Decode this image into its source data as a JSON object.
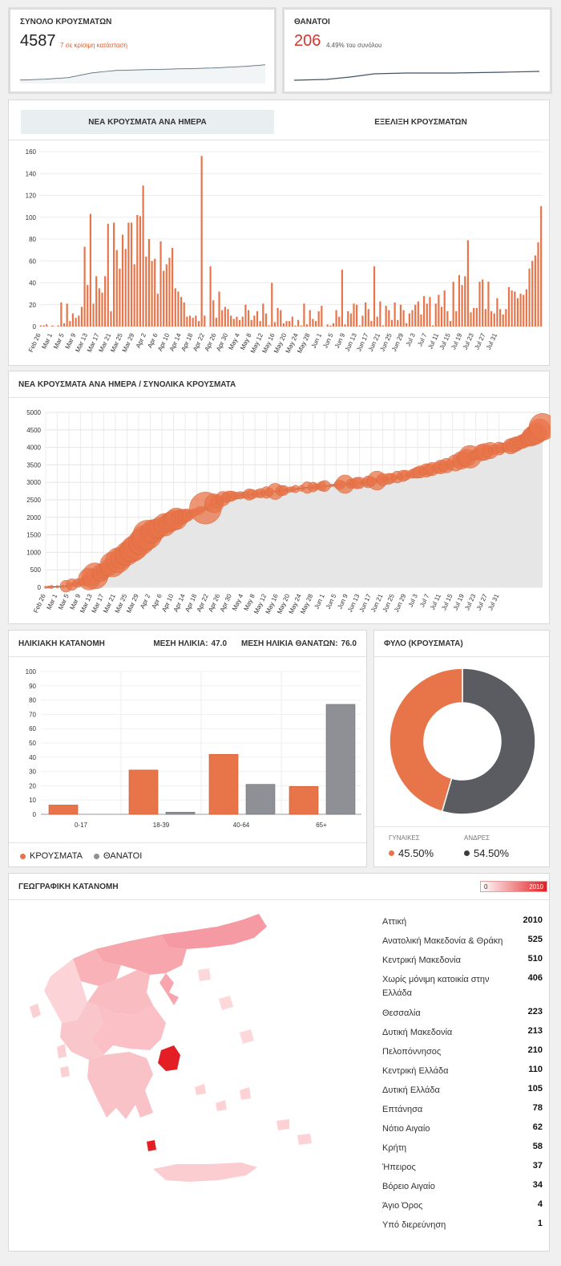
{
  "kpi_cases": {
    "title": "ΣΥΝΟΛΟ ΚΡΟΥΣΜΑΤΩΝ",
    "value": "4587",
    "note": "7 σε κρίσιμη κατάσταση"
  },
  "kpi_deaths": {
    "title": "ΘΑΝΑΤΟΙ",
    "value": "206",
    "note": "4.49% του συνόλου"
  },
  "tabs": {
    "daily": "ΝΕΑ ΚΡΟΥΣΜΑΤΑ ΑΝΑ ΗΜΕΡΑ",
    "evolution": "ΕΞΕΛΙΞΗ ΚΡΟΥΣΜΑΤΩΝ"
  },
  "colors": {
    "accent": "#e8744a",
    "grey": "#8e9096",
    "dark": "#5a5c61",
    "red": "#e31e24"
  },
  "date_labels": [
    "Feb 26",
    "Mar 1",
    "Mar 5",
    "Mar 9",
    "Mar 13",
    "Mar 17",
    "Mar 21",
    "Mar 25",
    "Mar 29",
    "Apr 2",
    "Apr 6",
    "Apr 10",
    "Apr 14",
    "Apr 18",
    "Apr 22",
    "Apr 26",
    "Apr 30",
    "May 4",
    "May 8",
    "May 12",
    "May 16",
    "May 20",
    "May 24",
    "May 28",
    "Jun 1",
    "Jun 5",
    "Jun 9",
    "Jun 13",
    "Jun 17",
    "Jun 21",
    "Jun 25",
    "Jun 29",
    "Jul 3",
    "Jul 7",
    "Jul 11",
    "Jul 15",
    "Jul 19",
    "Jul 23",
    "Jul 27",
    "Jul 31"
  ],
  "chart_data": [
    {
      "type": "bar",
      "title": "ΝΕΑ ΚΡΟΥΣΜΑΤΑ ΑΝΑ ΗΜΕΡΑ",
      "ylim": [
        0,
        160
      ],
      "yticks": [
        0,
        20,
        40,
        60,
        80,
        100,
        120,
        140,
        160
      ],
      "values": [
        1,
        1,
        2,
        0,
        1,
        0,
        1,
        22,
        3,
        21,
        5,
        12,
        8,
        10,
        18,
        73,
        38,
        103,
        21,
        46,
        35,
        31,
        46,
        94,
        14,
        95,
        70,
        53,
        84,
        71,
        95,
        95,
        57,
        102,
        101,
        129,
        64,
        80,
        60,
        62,
        30,
        78,
        51,
        57,
        63,
        72,
        35,
        32,
        27,
        22,
        9,
        10,
        8,
        10,
        5,
        156,
        10,
        0,
        55,
        24,
        8,
        32,
        15,
        18,
        16,
        10,
        7,
        9,
        6,
        9,
        20,
        15,
        6,
        10,
        14,
        5,
        21,
        12,
        1,
        40,
        4,
        17,
        15,
        3,
        5,
        5,
        9,
        1,
        6,
        1,
        21,
        2,
        15,
        7,
        5,
        14,
        19,
        0,
        2,
        1,
        3,
        15,
        9,
        52,
        2,
        14,
        12,
        21,
        20,
        1,
        10,
        22,
        16,
        5,
        55,
        9,
        23,
        1,
        19,
        15,
        6,
        22,
        6,
        20,
        15,
        3,
        12,
        15,
        20,
        23,
        11,
        28,
        21,
        27,
        1,
        21,
        29,
        18,
        33,
        14,
        5,
        41,
        14,
        47,
        38,
        46,
        79,
        13,
        17,
        17,
        41,
        43,
        16,
        41,
        14,
        12,
        26,
        16,
        11,
        16,
        36,
        33,
        32,
        26,
        30,
        29,
        34,
        53,
        60,
        65,
        77,
        110
      ]
    },
    {
      "type": "area",
      "title": "ΝΕΑ ΚΡΟΥΣΜΑΤΑ ΑΝΑ ΗΜΕΡΑ / ΣΥΝΟΛΙΚΑ ΚΡΟΥΣΜΑΤΑ",
      "ylim": [
        0,
        5000
      ],
      "yticks": [
        0,
        500,
        1000,
        1500,
        2000,
        2500,
        3000,
        3500,
        4000,
        4500,
        5000
      ],
      "cumulative_points": [
        [
          0,
          1
        ],
        [
          7,
          30
        ],
        [
          14,
          190
        ],
        [
          20,
          460
        ],
        [
          26,
          840
        ],
        [
          32,
          1210
        ],
        [
          35,
          1500
        ],
        [
          38,
          1660
        ],
        [
          42,
          1830
        ],
        [
          46,
          2000
        ],
        [
          50,
          2090
        ],
        [
          56,
          2300
        ],
        [
          60,
          2500
        ],
        [
          63,
          2600
        ],
        [
          70,
          2650
        ],
        [
          80,
          2750
        ],
        [
          90,
          2850
        ],
        [
          100,
          2925
        ],
        [
          110,
          3000
        ],
        [
          118,
          3100
        ],
        [
          125,
          3220
        ],
        [
          130,
          3320
        ],
        [
          135,
          3420
        ],
        [
          140,
          3520
        ],
        [
          145,
          3700
        ],
        [
          150,
          3850
        ],
        [
          155,
          3950
        ],
        [
          160,
          4030
        ],
        [
          165,
          4200
        ],
        [
          169,
          4400
        ],
        [
          171,
          4587
        ]
      ]
    },
    {
      "type": "bar",
      "title": "ΗΛΙΚΙΑΚΗ ΚΑΤΑΝΟΜΗ",
      "categories": [
        "0-17",
        "18-39",
        "40-64",
        "65+"
      ],
      "series": [
        {
          "name": "ΚΡΟΥΣΜΑΤΑ",
          "values": [
            6.5,
            31,
            42,
            19.5
          ]
        },
        {
          "name": "ΘΑΝΑΤΟΙ",
          "values": [
            0,
            1.5,
            21,
            77
          ]
        }
      ],
      "ylim": [
        0,
        100
      ],
      "yticks": [
        0,
        10,
        20,
        30,
        40,
        50,
        60,
        70,
        80,
        90,
        100
      ]
    },
    {
      "type": "pie",
      "title": "ΦΥΛΟ (ΚΡΟΥΣΜΑΤΑ)",
      "labels": [
        "ΓΥΝΑΙΚΕΣ",
        "ΑΝΔΡΕΣ"
      ],
      "values": [
        45.5,
        54.5
      ]
    }
  ],
  "age": {
    "title": "ΗΛΙΚΙΑΚΗ ΚΑΤΑΝΟΜΗ",
    "mean_age_label": "ΜΕΣΗ ΗΛΙΚΙΑ:",
    "mean_age": "47.0",
    "mean_death_age_label": "ΜΕΣΗ ΗΛΙΚΙΑ ΘΑΝΑΤΩΝ:",
    "mean_death_age": "76.0",
    "legend_cases": "ΚΡΟΥΣΜΑΤΑ",
    "legend_deaths": "ΘΑΝΑΤΟΙ"
  },
  "gender": {
    "title": "ΦΥΛΟ (ΚΡΟΥΣΜΑΤΑ)",
    "women_label": "ΓΥΝΑΙΚΕΣ",
    "women_value": "45.50%",
    "men_label": "ΑΝΔΡΕΣ",
    "men_value": "54.50%"
  },
  "geo": {
    "title": "ΓΕΩΓΡΑΦΙΚΗ ΚΑΤΑΝΟΜΗ",
    "scale_min": "0",
    "scale_max": "2010",
    "regions": [
      {
        "name": "Αττική",
        "value": "2010"
      },
      {
        "name": "Ανατολική Μακεδονία & Θράκη",
        "value": "525"
      },
      {
        "name": "Κεντρική Μακεδονία",
        "value": "510"
      },
      {
        "name": "Χωρίς μόνιμη κατοικία στην Ελλάδα",
        "value": "406"
      },
      {
        "name": "Θεσσαλία",
        "value": "223"
      },
      {
        "name": "Δυτική Μακεδονία",
        "value": "213"
      },
      {
        "name": "Πελοπόννησος",
        "value": "210"
      },
      {
        "name": "Κεντρική Ελλάδα",
        "value": "110"
      },
      {
        "name": "Δυτική Ελλάδα",
        "value": "105"
      },
      {
        "name": "Επτάνησα",
        "value": "78"
      },
      {
        "name": "Νότιο Αιγαίο",
        "value": "62"
      },
      {
        "name": "Κρήτη",
        "value": "58"
      },
      {
        "name": "Ήπειρος",
        "value": "37"
      },
      {
        "name": "Βόρειο Αιγαίο",
        "value": "34"
      },
      {
        "name": "Άγιο Όρος",
        "value": "4"
      },
      {
        "name": "Υπό διερεύνηση",
        "value": "1"
      }
    ]
  }
}
